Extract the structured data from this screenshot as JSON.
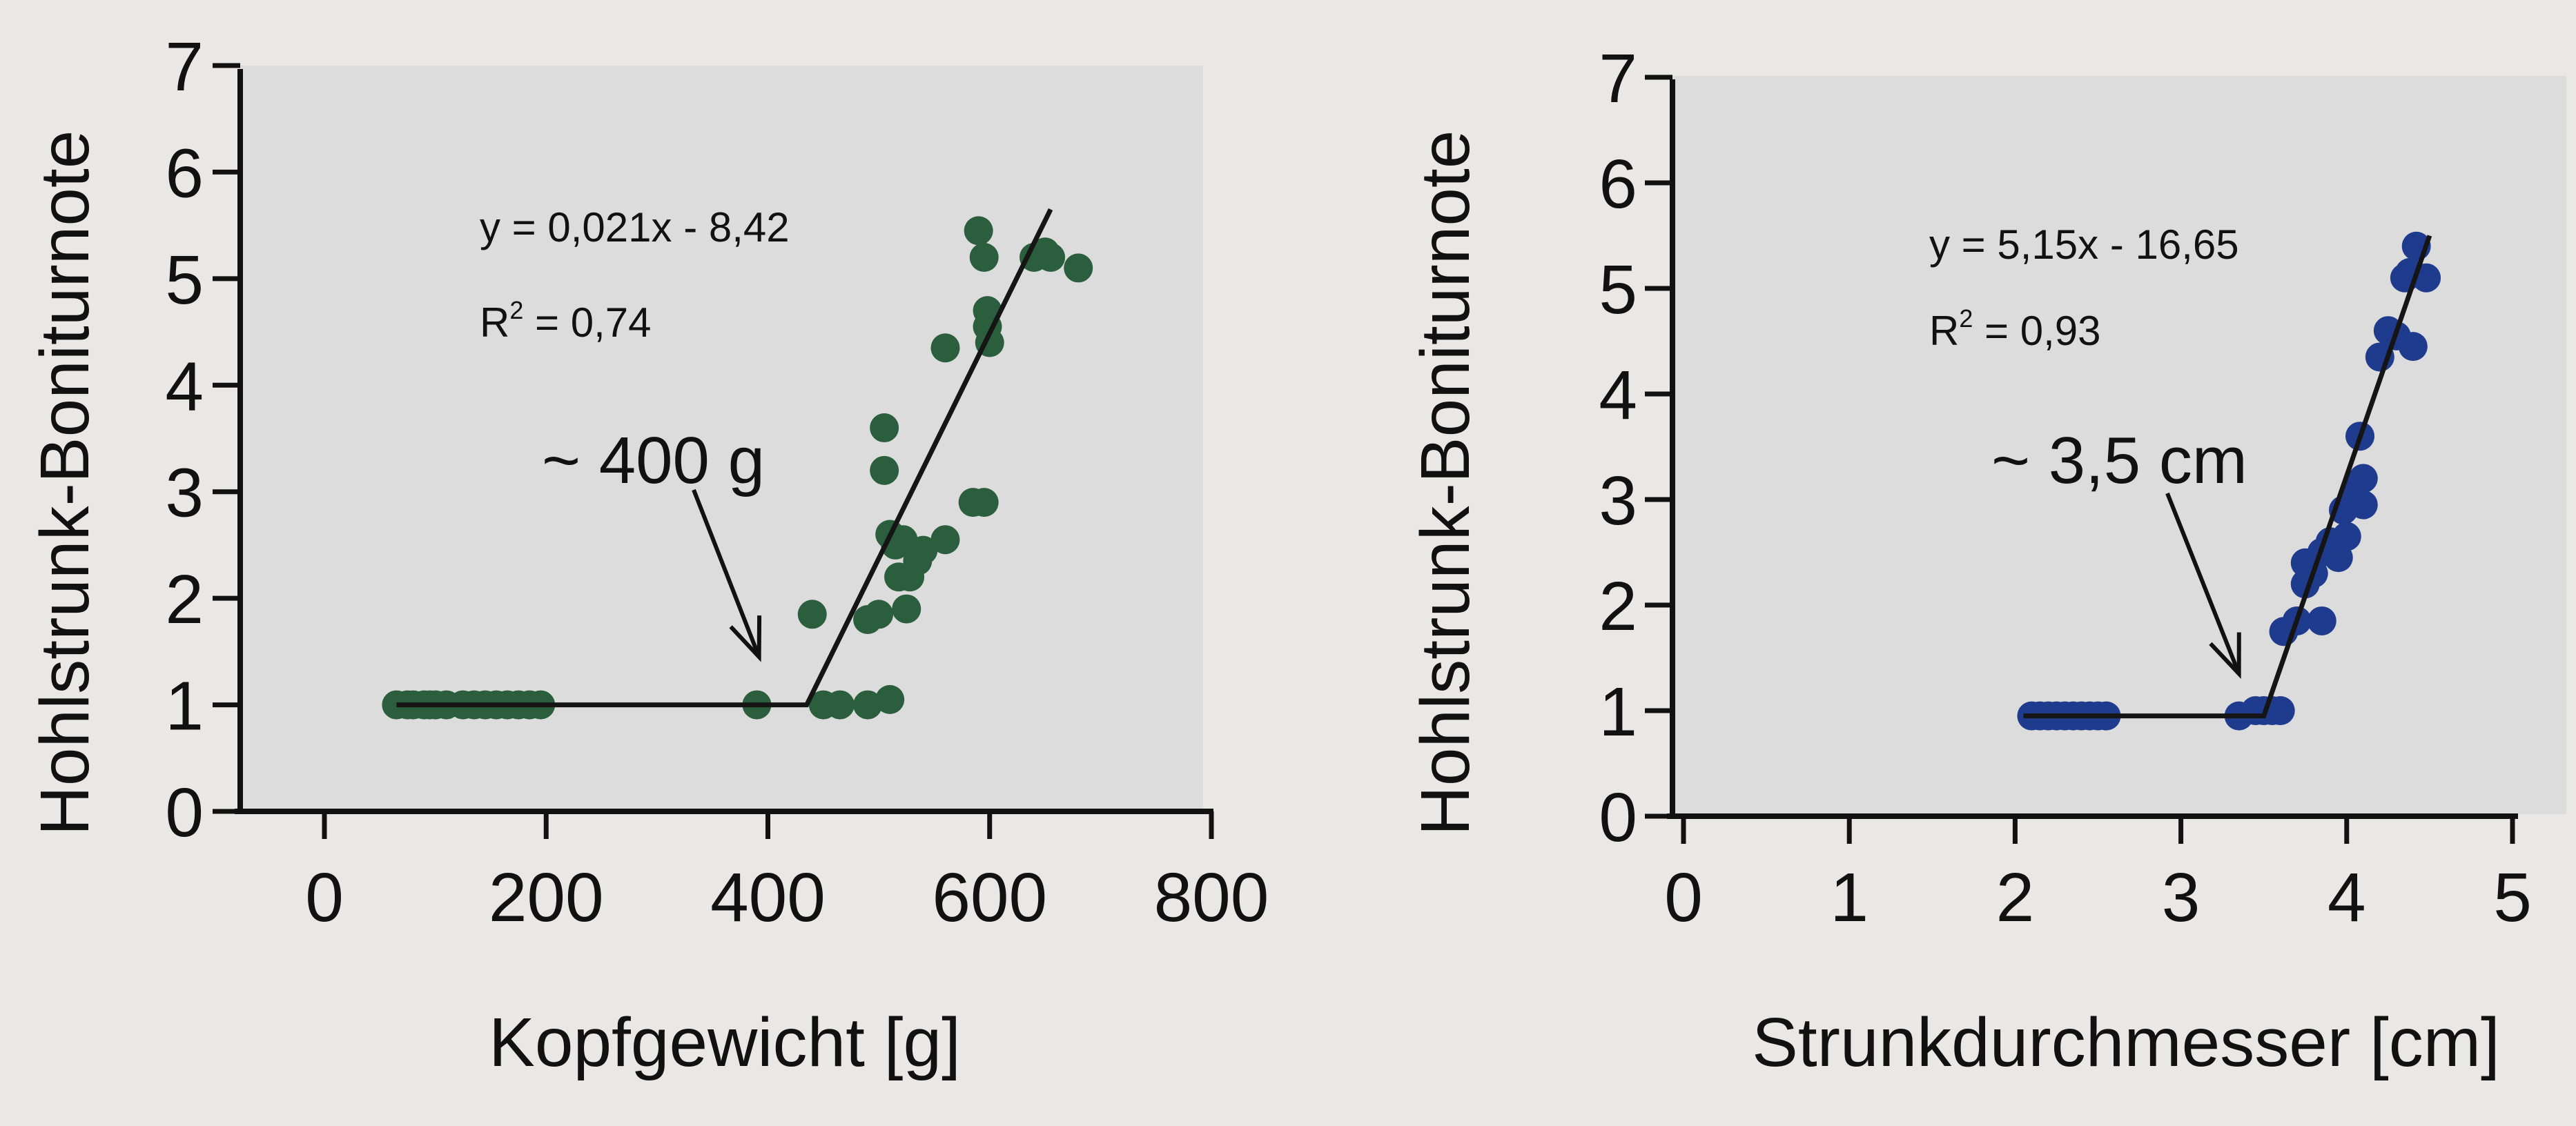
{
  "chart_data": [
    {
      "type": "scatter",
      "xlabel": "Kopfgewicht [g]",
      "ylabel": "Hohlstrunk-Boniturnote",
      "xlim": [
        0,
        800
      ],
      "ylim": [
        0,
        7
      ],
      "xticks": [
        "0",
        "200",
        "400",
        "600",
        "800"
      ],
      "yticks": [
        "0",
        "1",
        "2",
        "3",
        "4",
        "5",
        "6",
        "7"
      ],
      "grid": false,
      "legend": "none",
      "point_color": "#2a5e3c",
      "line_color": "#151515",
      "plot_background": "#dcdcdc",
      "points": [
        [
          65,
          1
        ],
        [
          75,
          1
        ],
        [
          80,
          1
        ],
        [
          90,
          1
        ],
        [
          95,
          1
        ],
        [
          100,
          1
        ],
        [
          110,
          1
        ],
        [
          125,
          1
        ],
        [
          135,
          1
        ],
        [
          145,
          1
        ],
        [
          155,
          1
        ],
        [
          165,
          1
        ],
        [
          175,
          1
        ],
        [
          185,
          1
        ],
        [
          195,
          1
        ],
        [
          390,
          1
        ],
        [
          440,
          1.85
        ],
        [
          450,
          1
        ],
        [
          465,
          1
        ],
        [
          490,
          1
        ],
        [
          490,
          1.8
        ],
        [
          500,
          1.85
        ],
        [
          505,
          3.6
        ],
        [
          505,
          3.2
        ],
        [
          510,
          2.6
        ],
        [
          510,
          1.05
        ],
        [
          515,
          2.5
        ],
        [
          518,
          2.2
        ],
        [
          522,
          2.55
        ],
        [
          525,
          1.9
        ],
        [
          528,
          2.2
        ],
        [
          535,
          2.35
        ],
        [
          540,
          2.45
        ],
        [
          560,
          2.55
        ],
        [
          560,
          4.35
        ],
        [
          585,
          2.9
        ],
        [
          595,
          2.9
        ],
        [
          590,
          5.45
        ],
        [
          595,
          5.2
        ],
        [
          598,
          4.7
        ],
        [
          598,
          4.55
        ],
        [
          600,
          4.4
        ],
        [
          640,
          5.2
        ],
        [
          650,
          5.25
        ],
        [
          655,
          5.2
        ],
        [
          680,
          5.1
        ]
      ],
      "fit_line": [
        [
          65,
          1
        ],
        [
          435,
          1
        ],
        [
          655,
          5.65
        ]
      ],
      "equation": "y = 0,021x - 8,42",
      "r2_prefix": "R",
      "r2_sup": "2",
      "r2_suffix": " = 0,74",
      "annotation": "~ 400 g",
      "annotation_arrow_to": [
        392,
        1.45
      ]
    },
    {
      "type": "scatter",
      "xlabel": "Strunkdurchmesser [cm]",
      "ylabel": "Hohlstrunk-Boniturnote",
      "xlim": [
        0,
        5
      ],
      "ylim": [
        0,
        7
      ],
      "xticks": [
        "0",
        "1",
        "2",
        "3",
        "4",
        "5"
      ],
      "yticks": [
        "0",
        "1",
        "2",
        "3",
        "4",
        "5",
        "6",
        "7"
      ],
      "grid": false,
      "legend": "none",
      "point_color": "#1f3b8e",
      "line_color": "#151515",
      "plot_background": "#dcdcdc",
      "points": [
        [
          2.1,
          0.95
        ],
        [
          2.15,
          0.95
        ],
        [
          2.2,
          0.95
        ],
        [
          2.25,
          0.95
        ],
        [
          2.3,
          0.95
        ],
        [
          2.35,
          0.95
        ],
        [
          2.4,
          0.95
        ],
        [
          2.45,
          0.95
        ],
        [
          2.5,
          0.95
        ],
        [
          2.55,
          0.95
        ],
        [
          3.35,
          0.95
        ],
        [
          3.45,
          1.0
        ],
        [
          3.5,
          1.0
        ],
        [
          3.55,
          1.0
        ],
        [
          3.6,
          1.0
        ],
        [
          3.62,
          1.75
        ],
        [
          3.7,
          1.85
        ],
        [
          3.75,
          2.2
        ],
        [
          3.75,
          2.4
        ],
        [
          3.8,
          2.3
        ],
        [
          3.85,
          2.5
        ],
        [
          3.85,
          1.85
        ],
        [
          3.9,
          2.6
        ],
        [
          3.95,
          2.45
        ],
        [
          3.98,
          2.9
        ],
        [
          4.0,
          2.65
        ],
        [
          4.05,
          3.1
        ],
        [
          4.08,
          3.6
        ],
        [
          4.1,
          2.95
        ],
        [
          4.1,
          3.2
        ],
        [
          4.2,
          4.35
        ],
        [
          4.25,
          4.6
        ],
        [
          4.3,
          4.55
        ],
        [
          4.35,
          5.1
        ],
        [
          4.38,
          5.15
        ],
        [
          4.4,
          4.45
        ],
        [
          4.42,
          5.4
        ],
        [
          4.48,
          5.1
        ]
      ],
      "fit_line": [
        [
          2.05,
          0.95
        ],
        [
          3.5,
          0.95
        ],
        [
          4.5,
          5.5
        ]
      ],
      "equation": "y = 5,15x - 16,65",
      "r2_prefix": "R",
      "r2_sup": "2",
      "r2_suffix": " = 0,93",
      "annotation": "~ 3,5 cm",
      "annotation_arrow_to": [
        3.35,
        1.35
      ]
    }
  ]
}
